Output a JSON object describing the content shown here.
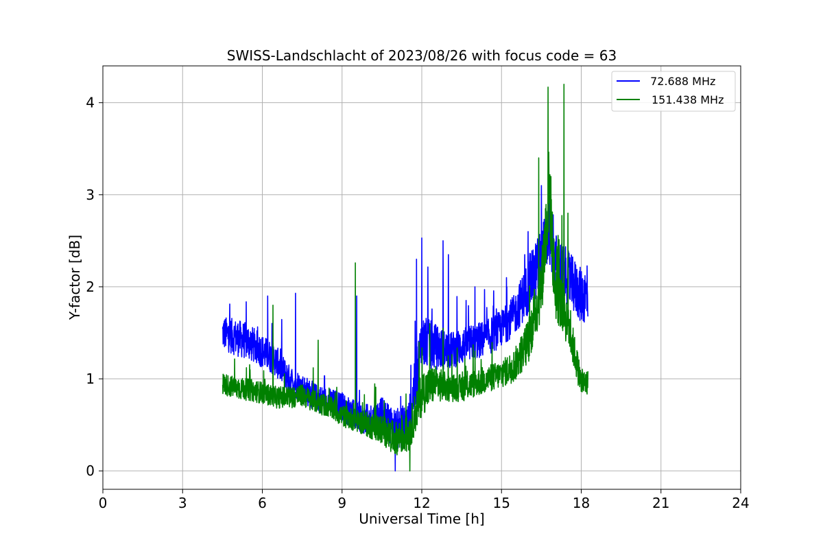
{
  "chart_data": {
    "type": "line",
    "title": "SWISS-Landschlacht of 2023/08/26 with focus code = 63",
    "xlabel": "Universal Time [h]",
    "ylabel": "Y-factor [dB]",
    "xlim": [
      0,
      24
    ],
    "ylim": [
      -0.2,
      4.4
    ],
    "xticks": [
      0,
      3,
      6,
      9,
      12,
      15,
      18,
      21,
      24
    ],
    "yticks": [
      0,
      1,
      2,
      3,
      4
    ],
    "grid": true,
    "legend_position": "upper right",
    "series": [
      {
        "name": " 72.688 MHz",
        "color": "#0000ff",
        "x": [
          4.5,
          5.0,
          5.5,
          6.0,
          6.5,
          7.0,
          7.5,
          8.0,
          8.5,
          9.0,
          9.5,
          10.0,
          10.5,
          11.0,
          11.5,
          12.0,
          12.5,
          13.0,
          13.5,
          14.0,
          14.5,
          15.0,
          15.5,
          16.0,
          16.5,
          16.8,
          17.0,
          17.5,
          18.0,
          18.25
        ],
        "values": [
          1.5,
          1.45,
          1.4,
          1.3,
          1.2,
          1.0,
          0.9,
          0.8,
          0.75,
          0.7,
          0.6,
          0.55,
          0.6,
          0.45,
          0.5,
          1.4,
          1.35,
          1.3,
          1.35,
          1.4,
          1.45,
          1.55,
          1.7,
          2.0,
          2.3,
          2.6,
          2.3,
          2.1,
          1.9,
          1.9
        ],
        "spread": [
          0.18,
          0.2,
          0.2,
          0.18,
          0.17,
          0.16,
          0.16,
          0.15,
          0.15,
          0.16,
          0.16,
          0.17,
          0.2,
          0.22,
          0.25,
          0.3,
          0.25,
          0.2,
          0.2,
          0.2,
          0.2,
          0.2,
          0.22,
          0.3,
          0.35,
          0.35,
          0.3,
          0.3,
          0.3,
          0.3
        ],
        "spikes": [
          [
            6.2,
            1.9
          ],
          [
            7.25,
            1.93
          ],
          [
            9.55,
            1.9
          ],
          [
            11.0,
            0.0
          ],
          [
            11.8,
            2.3
          ],
          [
            12.0,
            2.53
          ],
          [
            12.8,
            2.5
          ],
          [
            13.0,
            2.35
          ],
          [
            14.0,
            2.0
          ],
          [
            15.2,
            2.0
          ],
          [
            16.0,
            2.6
          ],
          [
            16.5,
            3.1
          ],
          [
            16.8,
            3.0
          ]
        ]
      },
      {
        "name": "151.438 MHz",
        "color": "#008000",
        "x": [
          4.5,
          5.0,
          5.5,
          6.0,
          6.5,
          7.0,
          7.5,
          8.0,
          8.5,
          9.0,
          9.5,
          10.0,
          10.5,
          11.0,
          11.5,
          12.0,
          12.5,
          13.0,
          13.5,
          14.0,
          14.5,
          15.0,
          15.5,
          16.0,
          16.5,
          16.8,
          17.0,
          17.5,
          18.0,
          18.25
        ],
        "values": [
          0.95,
          0.9,
          0.88,
          0.85,
          0.8,
          0.8,
          0.82,
          0.75,
          0.7,
          0.6,
          0.55,
          0.5,
          0.45,
          0.35,
          0.4,
          0.85,
          0.95,
          0.9,
          0.9,
          0.95,
          1.0,
          1.05,
          1.15,
          1.4,
          2.0,
          3.1,
          2.0,
          1.6,
          0.95,
          0.95
        ],
        "spread": [
          0.12,
          0.12,
          0.12,
          0.12,
          0.12,
          0.12,
          0.12,
          0.12,
          0.12,
          0.12,
          0.12,
          0.14,
          0.16,
          0.18,
          0.2,
          0.25,
          0.2,
          0.15,
          0.15,
          0.15,
          0.15,
          0.15,
          0.18,
          0.25,
          0.35,
          0.5,
          0.35,
          0.25,
          0.15,
          0.15
        ],
        "spikes": [
          [
            6.4,
            1.8
          ],
          [
            8.1,
            1.42
          ],
          [
            9.5,
            2.26
          ],
          [
            11.55,
            0.0
          ],
          [
            11.9,
            1.4
          ],
          [
            12.3,
            1.6
          ],
          [
            12.8,
            1.55
          ],
          [
            16.4,
            3.4
          ],
          [
            16.75,
            4.17
          ],
          [
            17.35,
            4.2
          ],
          [
            17.5,
            2.8
          ]
        ]
      }
    ]
  }
}
